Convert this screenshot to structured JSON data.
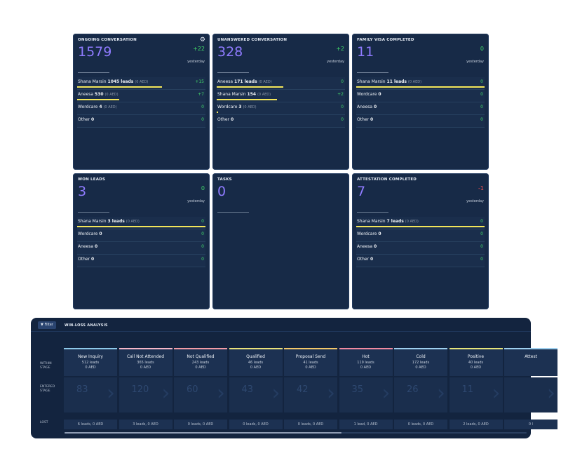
{
  "cards": [
    {
      "title": "ONGOING CONVERSATION",
      "value": "1579",
      "delta": "+22",
      "delta_label": "yesterday",
      "show_gear": true,
      "rows": [
        {
          "name": "Shana Marsin",
          "count": "1045 leads",
          "aed": "(0 AED)",
          "num": "+15",
          "bar": 0.66
        },
        {
          "name": "Aneesa",
          "count": "530",
          "aed": "(0 AED)",
          "num": "+7",
          "bar": 0.33
        },
        {
          "name": "Wordcare",
          "count": "4",
          "aed": "(0 AED)",
          "num": "0",
          "bar": 0
        },
        {
          "name": "Other",
          "count": "0",
          "aed": "",
          "num": "0",
          "bar": 0
        }
      ]
    },
    {
      "title": "UNANSWERED CONVERSATION",
      "value": "328",
      "delta": "+2",
      "delta_label": "yesterday",
      "show_gear": false,
      "rows": [
        {
          "name": "Aneesa",
          "count": "171 leads",
          "aed": "(0 AED)",
          "num": "0",
          "bar": 0.52
        },
        {
          "name": "Shana Marsin",
          "count": "154",
          "aed": "(0 AED)",
          "num": "+2",
          "bar": 0.47
        },
        {
          "name": "Wordcare",
          "count": "3",
          "aed": "(0 AED)",
          "num": "0",
          "bar": 0.01
        },
        {
          "name": "Other",
          "count": "0",
          "aed": "",
          "num": "0",
          "bar": 0
        }
      ]
    },
    {
      "title": "FAMILY VISA COMPLETED",
      "value": "11",
      "delta": "0",
      "delta_label": "yesterday",
      "show_gear": false,
      "rows": [
        {
          "name": "Shana Marsin",
          "count": "11 leads",
          "aed": "(0 AED)",
          "num": "0",
          "bar": 1.0
        },
        {
          "name": "Wordcare",
          "count": "0",
          "aed": "",
          "num": "0",
          "bar": 0
        },
        {
          "name": "Aneesa",
          "count": "0",
          "aed": "",
          "num": "0",
          "bar": 0
        },
        {
          "name": "Other",
          "count": "0",
          "aed": "",
          "num": "0",
          "bar": 0
        }
      ]
    },
    {
      "title": "WON LEADS",
      "value": "3",
      "delta": "0",
      "delta_label": "yesterday",
      "show_gear": false,
      "rows": [
        {
          "name": "Shana Marsin",
          "count": "3 leads",
          "aed": "(0 AED)",
          "num": "0",
          "bar": 1.0
        },
        {
          "name": "Wordcare",
          "count": "0",
          "aed": "",
          "num": "0",
          "bar": 0
        },
        {
          "name": "Aneesa",
          "count": "0",
          "aed": "",
          "num": "0",
          "bar": 0
        },
        {
          "name": "Other",
          "count": "0",
          "aed": "",
          "num": "0",
          "bar": 0
        }
      ]
    },
    {
      "title": "TASKS",
      "value": "0",
      "delta": "",
      "delta_label": "",
      "show_gear": false,
      "rows": []
    },
    {
      "title": "ATTESTATION COMPLETED",
      "value": "7",
      "delta": "-1",
      "delta_label": "yesterday",
      "show_gear": false,
      "rows": [
        {
          "name": "Shana Marsin",
          "count": "7 leads",
          "aed": "(0 AED)",
          "num": "0",
          "bar": 1.0
        },
        {
          "name": "Wordcare",
          "count": "0",
          "aed": "",
          "num": "0",
          "bar": 0
        },
        {
          "name": "Aneesa",
          "count": "0",
          "aed": "",
          "num": "0",
          "bar": 0
        },
        {
          "name": "Other",
          "count": "0",
          "aed": "",
          "num": "0",
          "bar": 0
        }
      ]
    }
  ],
  "winloss": {
    "filter_label": "Filter",
    "title": "WIN-LOSS ANALYSIS",
    "row_labels": {
      "within": [
        "WITHIN",
        "STAGE"
      ],
      "entered": [
        "ENTERED",
        "STAGE"
      ],
      "lost": "LOST"
    },
    "scroll_position": 0.6,
    "stages": [
      {
        "name": "New Inquiry",
        "leads": "512 leads",
        "aed": "0 AED",
        "entered": "83",
        "lost": "6 leads, 0 AED",
        "color": "#8ec9ea"
      },
      {
        "name": "Call Not Attended",
        "leads": "365 leads",
        "aed": "0 AED",
        "entered": "120",
        "lost": "3 leads, 0 AED",
        "color": "#f5b7c8"
      },
      {
        "name": "Not Qualified",
        "leads": "243 leads",
        "aed": "0 AED",
        "entered": "60",
        "lost": "0 leads, 0 AED",
        "color": "#f19ca6"
      },
      {
        "name": "Qualified",
        "leads": "46 leads",
        "aed": "0 AED",
        "entered": "43",
        "lost": "0 leads, 0 AED",
        "color": "#e9e07a"
      },
      {
        "name": "Proposal Send",
        "leads": "41 leads",
        "aed": "0 AED",
        "entered": "42",
        "lost": "0 leads, 0 AED",
        "color": "#f2c76a"
      },
      {
        "name": "Hot",
        "leads": "119 leads",
        "aed": "0 AED",
        "entered": "35",
        "lost": "1 lead, 0 AED",
        "color": "#f08aa0"
      },
      {
        "name": "Cold",
        "leads": "172 leads",
        "aed": "0 AED",
        "entered": "26",
        "lost": "0 leads, 0 AED",
        "color": "#9fd0ef"
      },
      {
        "name": "Positive",
        "leads": "40 leads",
        "aed": "0 AED",
        "entered": "11",
        "lost": "2 leads, 0 AED",
        "color": "#e6e47a"
      },
      {
        "name": "Attest",
        "leads": "",
        "aed": "",
        "entered": "",
        "lost": "0 l",
        "color": "#9fd0ef"
      }
    ]
  }
}
